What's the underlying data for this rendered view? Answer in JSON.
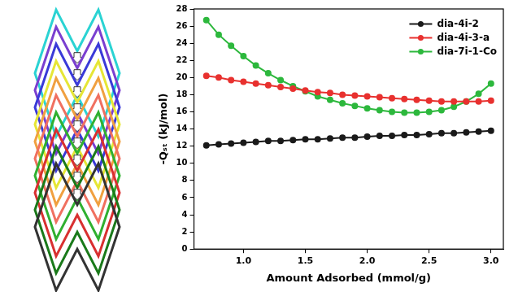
{
  "chart_data": {
    "type": "line",
    "x_label": "Amount Adsorbed (mmol/g)",
    "y_label": "-Qₛₜ (kJ/mol)",
    "x": [
      0.7,
      0.8,
      0.9,
      1.0,
      1.1,
      1.2,
      1.3,
      1.4,
      1.5,
      1.6,
      1.7,
      1.8,
      1.9,
      2.0,
      2.1,
      2.2,
      2.3,
      2.4,
      2.5,
      2.6,
      2.7,
      2.8,
      2.9,
      3.0
    ],
    "series": [
      {
        "name": "dia-4i-2",
        "color": "#1a1a1a",
        "values": [
          12.1,
          12.2,
          12.3,
          12.4,
          12.5,
          12.6,
          12.6,
          12.7,
          12.8,
          12.8,
          12.9,
          13.0,
          13.0,
          13.1,
          13.2,
          13.2,
          13.3,
          13.3,
          13.4,
          13.5,
          13.5,
          13.6,
          13.7,
          13.8
        ]
      },
      {
        "name": "dia-4i-3-a",
        "color": "#e8312f",
        "values": [
          20.2,
          20.0,
          19.7,
          19.5,
          19.3,
          19.1,
          18.9,
          18.7,
          18.5,
          18.3,
          18.2,
          18.0,
          17.9,
          17.8,
          17.7,
          17.6,
          17.5,
          17.4,
          17.3,
          17.2,
          17.2,
          17.2,
          17.2,
          17.3
        ]
      },
      {
        "name": "dia-7i-1-Co",
        "color": "#2db83d",
        "values": [
          26.7,
          25.0,
          23.7,
          22.5,
          21.4,
          20.5,
          19.7,
          19.0,
          18.4,
          17.8,
          17.4,
          17.0,
          16.7,
          16.4,
          16.2,
          16.0,
          15.9,
          15.9,
          16.0,
          16.2,
          16.6,
          17.2,
          18.1,
          19.3
        ]
      }
    ],
    "xlim": [
      0.6,
      3.1
    ],
    "xticks": [
      {
        "value": 1.0,
        "label": "1.0"
      },
      {
        "value": 1.5,
        "label": "1.5"
      },
      {
        "value": 2.0,
        "label": "2.0"
      },
      {
        "value": 2.5,
        "label": "2.5"
      },
      {
        "value": 3.0,
        "label": "3.0"
      }
    ],
    "ylim": [
      0,
      28
    ],
    "yticks": [
      0,
      2,
      4,
      6,
      8,
      10,
      12,
      14,
      16,
      18,
      20,
      22,
      24,
      26,
      28
    ],
    "grid": false,
    "legend": "top-right",
    "marker": "circle",
    "line_style": "solid"
  }
}
